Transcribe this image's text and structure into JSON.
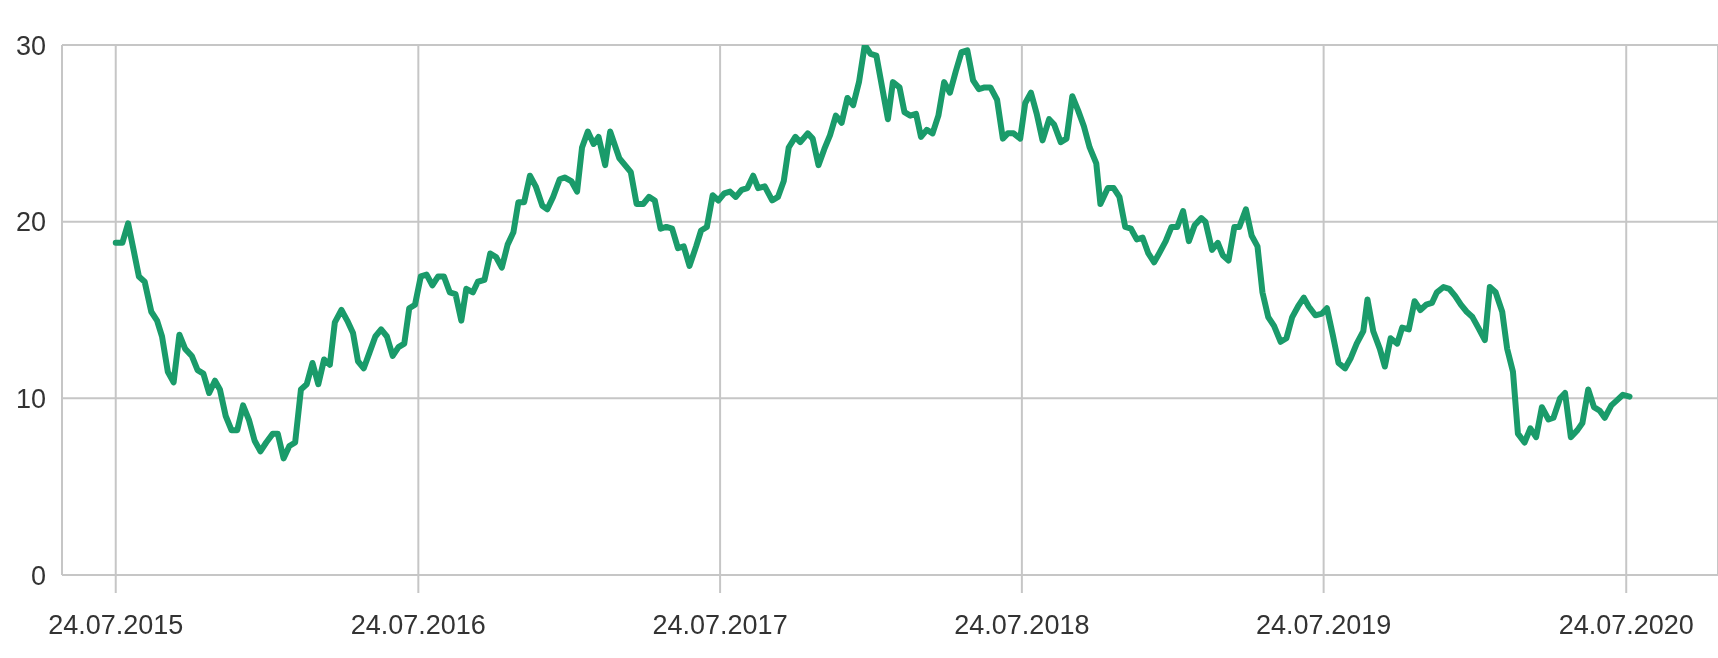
{
  "chart_data": {
    "type": "line",
    "x": [
      "2015-07-24",
      "2015-08-01",
      "2015-08-08",
      "2015-08-15",
      "2015-08-21",
      "2015-08-28",
      "2015-09-05",
      "2015-09-12",
      "2015-09-18",
      "2015-09-25",
      "2015-10-02",
      "2015-10-09",
      "2015-10-16",
      "2015-10-24",
      "2015-10-31",
      "2015-11-07",
      "2015-11-14",
      "2015-11-21",
      "2015-11-27",
      "2015-12-04",
      "2015-12-11",
      "2015-12-18",
      "2015-12-25",
      "2016-01-01",
      "2016-01-08",
      "2016-01-15",
      "2016-01-22",
      "2016-01-30",
      "2016-02-05",
      "2016-02-12",
      "2016-02-19",
      "2016-02-26",
      "2016-03-04",
      "2016-03-11",
      "2016-03-18",
      "2016-03-25",
      "2016-04-01",
      "2016-04-08",
      "2016-04-14",
      "2016-04-22",
      "2016-04-29",
      "2016-05-06",
      "2016-05-12",
      "2016-05-19",
      "2016-05-26",
      "2016-06-02",
      "2016-06-09",
      "2016-06-16",
      "2016-06-23",
      "2016-06-30",
      "2016-07-07",
      "2016-07-13",
      "2016-07-20",
      "2016-07-27",
      "2016-08-03",
      "2016-08-10",
      "2016-08-17",
      "2016-08-24",
      "2016-08-31",
      "2016-09-07",
      "2016-09-14",
      "2016-09-20",
      "2016-09-28",
      "2016-10-04",
      "2016-10-12",
      "2016-10-19",
      "2016-10-26",
      "2016-11-02",
      "2016-11-09",
      "2016-11-16",
      "2016-11-22",
      "2016-11-29",
      "2016-12-06",
      "2016-12-13",
      "2016-12-21",
      "2016-12-27",
      "2017-01-03",
      "2017-01-11",
      "2017-01-17",
      "2017-01-25",
      "2017-02-01",
      "2017-02-07",
      "2017-02-14",
      "2017-02-21",
      "2017-02-27",
      "2017-03-07",
      "2017-03-13",
      "2017-03-24",
      "2017-03-31",
      "2017-04-07",
      "2017-04-14",
      "2017-04-22",
      "2017-04-29",
      "2017-05-06",
      "2017-05-13",
      "2017-05-20",
      "2017-05-27",
      "2017-06-03",
      "2017-06-10",
      "2017-06-17",
      "2017-06-25",
      "2017-07-01",
      "2017-07-08",
      "2017-07-15",
      "2017-07-22",
      "2017-07-29",
      "2017-08-05",
      "2017-08-12",
      "2017-08-19",
      "2017-08-26",
      "2017-09-02",
      "2017-09-08",
      "2017-09-16",
      "2017-09-25",
      "2017-10-02",
      "2017-10-09",
      "2017-10-15",
      "2017-10-23",
      "2017-10-29",
      "2017-11-07",
      "2017-11-13",
      "2017-11-20",
      "2017-11-27",
      "2017-12-04",
      "2017-12-11",
      "2017-12-18",
      "2017-12-25",
      "2018-01-01",
      "2018-01-08",
      "2018-01-15",
      "2018-01-22",
      "2018-01-29",
      "2018-02-05",
      "2018-02-12",
      "2018-02-18",
      "2018-02-26",
      "2018-03-04",
      "2018-03-11",
      "2018-03-18",
      "2018-03-24",
      "2018-03-31",
      "2018-04-07",
      "2018-04-14",
      "2018-04-21",
      "2018-04-28",
      "2018-05-05",
      "2018-05-12",
      "2018-05-19",
      "2018-05-26",
      "2018-06-02",
      "2018-06-09",
      "2018-06-16",
      "2018-06-24",
      "2018-07-01",
      "2018-07-07",
      "2018-07-14",
      "2018-07-22",
      "2018-07-28",
      "2018-08-04",
      "2018-08-11",
      "2018-08-18",
      "2018-08-26",
      "2018-09-01",
      "2018-09-09",
      "2018-09-16",
      "2018-09-23",
      "2018-09-30",
      "2018-10-07",
      "2018-10-14",
      "2018-10-22",
      "2018-10-27",
      "2018-11-05",
      "2018-11-12",
      "2018-11-19",
      "2018-11-26",
      "2018-12-03",
      "2018-12-10",
      "2018-12-17",
      "2018-12-24",
      "2018-12-31",
      "2019-01-06",
      "2019-01-14",
      "2019-01-21",
      "2019-01-28",
      "2019-02-04",
      "2019-02-11",
      "2019-02-18",
      "2019-02-26",
      "2019-03-03",
      "2019-03-11",
      "2019-03-18",
      "2019-03-24",
      "2019-03-31",
      "2019-04-07",
      "2019-04-13",
      "2019-04-21",
      "2019-04-28",
      "2019-05-05",
      "2019-05-11",
      "2019-05-18",
      "2019-05-25",
      "2019-06-02",
      "2019-06-09",
      "2019-06-16",
      "2019-06-23",
      "2019-06-30",
      "2019-07-06",
      "2019-07-14",
      "2019-07-22",
      "2019-07-28",
      "2019-08-04",
      "2019-08-11",
      "2019-08-19",
      "2019-08-26",
      "2019-09-02",
      "2019-09-10",
      "2019-09-15",
      "2019-09-22",
      "2019-09-30",
      "2019-10-06",
      "2019-10-13",
      "2019-10-21",
      "2019-10-27",
      "2019-11-04",
      "2019-11-11",
      "2019-11-18",
      "2019-11-25",
      "2019-12-02",
      "2019-12-08",
      "2019-12-16",
      "2019-12-23",
      "2019-12-30",
      "2020-01-06",
      "2020-01-13",
      "2020-01-20",
      "2020-01-27",
      "2020-02-04",
      "2020-02-10",
      "2020-02-17",
      "2020-02-25",
      "2020-03-02",
      "2020-03-09",
      "2020-03-15",
      "2020-03-23",
      "2020-03-30",
      "2020-04-06",
      "2020-04-13",
      "2020-04-21",
      "2020-04-27",
      "2020-05-05",
      "2020-05-11",
      "2020-05-18",
      "2020-05-26",
      "2020-06-01",
      "2020-06-08",
      "2020-06-15",
      "2020-06-22",
      "2020-06-28",
      "2020-07-06",
      "2020-07-13",
      "2020-07-20",
      "2020-07-28"
    ],
    "series": [
      {
        "color": "#1a9b6a",
        "values": [
          18.8,
          18.8,
          19.9,
          18.3,
          16.9,
          16.6,
          14.9,
          14.4,
          13.5,
          11.5,
          10.9,
          13.6,
          12.8,
          12.4,
          11.6,
          11.4,
          10.3,
          11.0,
          10.5,
          9.0,
          8.2,
          8.2,
          9.6,
          8.8,
          7.6,
          7.0,
          7.5,
          8.0,
          8.0,
          6.6,
          7.3,
          7.5,
          10.5,
          10.8,
          12.0,
          10.8,
          12.2,
          11.9,
          14.3,
          15.0,
          14.4,
          13.7,
          12.1,
          11.7,
          12.6,
          13.5,
          13.9,
          13.5,
          12.4,
          12.9,
          13.1,
          15.1,
          15.3,
          16.9,
          17.0,
          16.4,
          16.9,
          16.9,
          16.0,
          15.9,
          14.4,
          16.2,
          16.0,
          16.6,
          16.7,
          18.2,
          18.0,
          17.4,
          18.7,
          19.4,
          21.1,
          21.1,
          22.6,
          22.0,
          20.9,
          20.7,
          21.4,
          22.4,
          22.5,
          22.3,
          21.7,
          24.2,
          25.1,
          24.4,
          24.8,
          23.2,
          25.1,
          23.6,
          23.2,
          22.8,
          21.0,
          21.0,
          21.4,
          21.2,
          19.6,
          19.7,
          19.6,
          18.5,
          18.6,
          17.5,
          18.6,
          19.5,
          19.7,
          21.5,
          21.2,
          21.6,
          21.7,
          21.4,
          21.8,
          21.9,
          22.6,
          21.9,
          22.0,
          21.2,
          21.4,
          22.3,
          24.2,
          24.8,
          24.5,
          25.0,
          24.7,
          23.2,
          24.1,
          24.9,
          26.0,
          25.6,
          27.0,
          26.6,
          27.9,
          30.0,
          29.5,
          29.4,
          27.6,
          25.8,
          27.9,
          27.6,
          26.2,
          26.0,
          26.1,
          24.8,
          25.2,
          25.0,
          26.0,
          27.9,
          27.3,
          28.5,
          29.6,
          29.7,
          28.0,
          27.5,
          27.6,
          27.6,
          26.9,
          24.7,
          25.0,
          25.0,
          24.7,
          26.7,
          27.3,
          26.1,
          24.6,
          25.8,
          25.5,
          24.5,
          24.7,
          27.1,
          26.3,
          25.4,
          24.2,
          23.3,
          21.0,
          21.9,
          21.9,
          21.4,
          19.7,
          19.6,
          19.0,
          19.1,
          18.2,
          17.7,
          18.2,
          18.9,
          19.7,
          19.7,
          20.6,
          18.9,
          19.8,
          20.2,
          20.0,
          18.4,
          18.8,
          18.1,
          17.8,
          19.7,
          19.7,
          20.7,
          19.2,
          18.6,
          16.0,
          14.6,
          14.1,
          13.2,
          13.4,
          14.6,
          15.2,
          15.7,
          15.2,
          14.7,
          14.8,
          15.1,
          13.6,
          12.0,
          11.7,
          12.3,
          13.1,
          13.8,
          15.6,
          13.8,
          12.8,
          11.8,
          13.4,
          13.1,
          14.0,
          13.9,
          15.5,
          15.0,
          15.3,
          15.4,
          16.0,
          16.3,
          16.2,
          15.8,
          15.3,
          14.9,
          14.6,
          14.0,
          13.3,
          16.3,
          16.0,
          14.9,
          12.8,
          11.5,
          8.0,
          7.5,
          8.3,
          7.8,
          9.5,
          8.8,
          8.9,
          10.0,
          10.3,
          7.8,
          8.2,
          8.6,
          10.5,
          9.5,
          9.3,
          8.9,
          9.6,
          9.9,
          10.2,
          10.1
        ]
      }
    ],
    "xlim": [
      "2015-05-20",
      "2020-11-12"
    ],
    "xticks": [
      {
        "value": "2015-07-24",
        "label": "24.07.2015"
      },
      {
        "value": "2016-07-24",
        "label": "24.07.2016"
      },
      {
        "value": "2017-07-24",
        "label": "24.07.2017"
      },
      {
        "value": "2018-07-24",
        "label": "24.07.2018"
      },
      {
        "value": "2019-07-24",
        "label": "24.07.2019"
      },
      {
        "value": "2020-07-24",
        "label": "24.07.2020"
      }
    ],
    "ylim": [
      0,
      30
    ],
    "yticks": [
      0,
      10,
      20,
      30
    ],
    "grid": true
  }
}
